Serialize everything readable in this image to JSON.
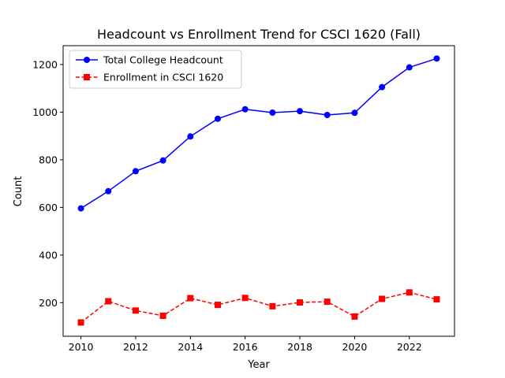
{
  "chart_data": {
    "type": "line",
    "title": "Headcount vs Enrollment Trend for CSCI 1620 (Fall)",
    "xlabel": "Year",
    "ylabel": "Count",
    "x": [
      2010,
      2011,
      2012,
      2013,
      2014,
      2015,
      2016,
      2017,
      2018,
      2019,
      2020,
      2021,
      2022,
      2023
    ],
    "xlim": [
      2009.35,
      2023.65
    ],
    "ylim": [
      59,
      1279
    ],
    "x_ticks": [
      2010,
      2012,
      2014,
      2016,
      2018,
      2020,
      2022
    ],
    "y_ticks": [
      200,
      400,
      600,
      800,
      1000,
      1200
    ],
    "grid": false,
    "legend_position": "top-left",
    "series": [
      {
        "name": "Total College Headcount",
        "color": "#0000ff",
        "marker": "circle",
        "line_style": "solid",
        "values": [
          596,
          668,
          752,
          797,
          898,
          972,
          1012,
          998,
          1004,
          988,
          997,
          1105,
          1188,
          1225
        ]
      },
      {
        "name": "Enrollment in CSCI 1620",
        "color": "#ff0000",
        "marker": "square",
        "line_style": "dashed",
        "values": [
          117,
          206,
          167,
          145,
          219,
          191,
          220,
          185,
          201,
          204,
          142,
          216,
          243,
          214
        ]
      }
    ]
  }
}
